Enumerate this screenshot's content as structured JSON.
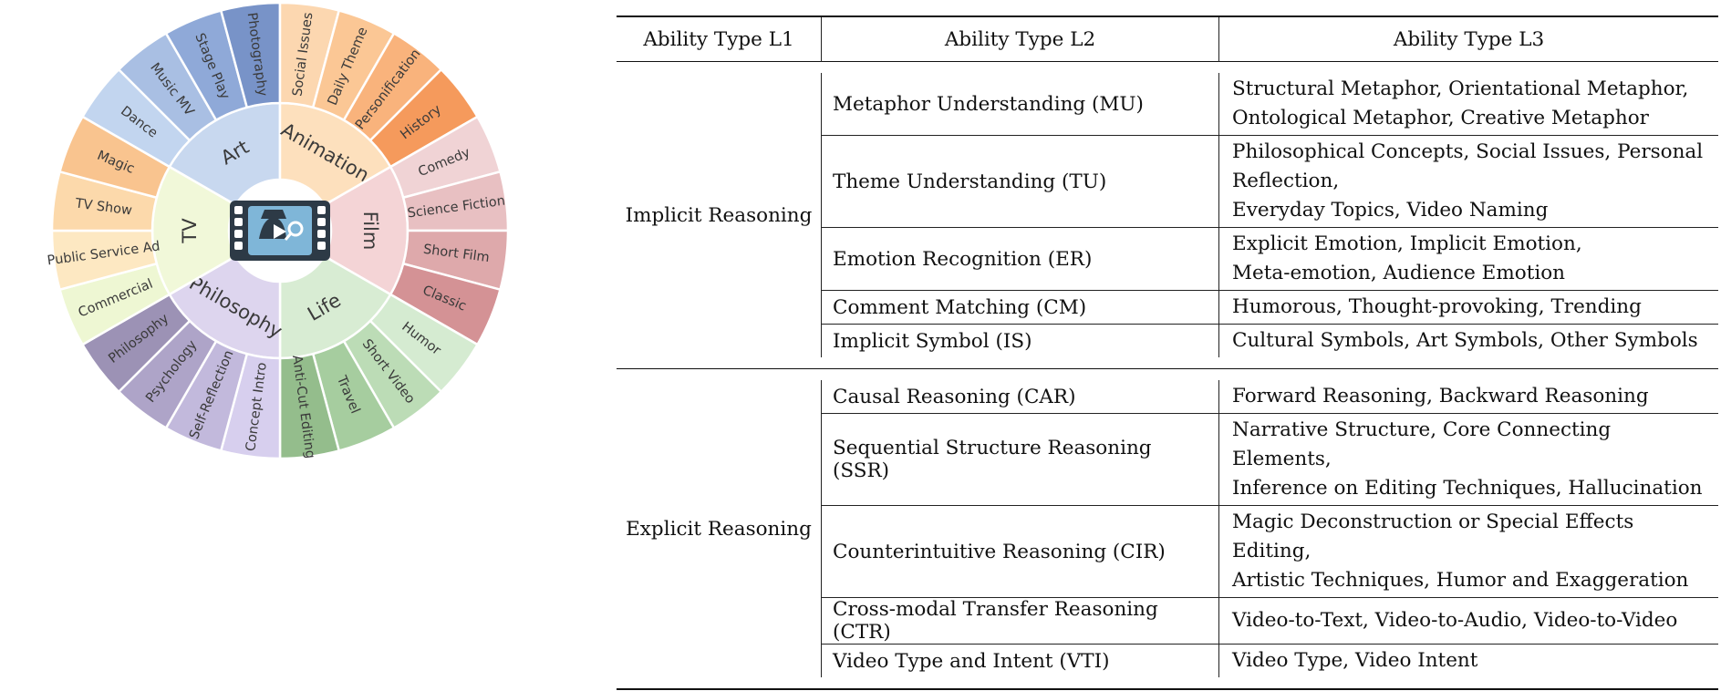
{
  "wheel": {
    "center_icon": "film-detective-icon",
    "categories": [
      {
        "label": "Art",
        "color": "#c8d8ef",
        "outer_color": "#9fb6dc",
        "subs": [
          {
            "label": "Dance",
            "color": "#c2d5ef"
          },
          {
            "label": "Music MV",
            "color": "#a9bfe3"
          },
          {
            "label": "Stage Play",
            "color": "#8fa9d8"
          },
          {
            "label": "Photography",
            "color": "#7893c8"
          }
        ]
      },
      {
        "label": "Animation",
        "color": "#fde0bd",
        "outer_color": "#f9b57e",
        "subs": [
          {
            "label": "Social Issues",
            "color": "#fcd7b0"
          },
          {
            "label": "Daily Theme",
            "color": "#fbc795"
          },
          {
            "label": "Personification",
            "color": "#f9b37c"
          },
          {
            "label": "History",
            "color": "#f59a5c"
          }
        ]
      },
      {
        "label": "Film",
        "color": "#f4d4d6",
        "outer_color": "#e6b2b4",
        "subs": [
          {
            "label": "Comedy",
            "color": "#f0d3d5"
          },
          {
            "label": "Science Fiction",
            "color": "#e8c0c2"
          },
          {
            "label": "Short Film",
            "color": "#dea9ab"
          },
          {
            "label": "Classic",
            "color": "#d49295"
          }
        ]
      },
      {
        "label": "Life",
        "color": "#d8ecd3",
        "outer_color": "#a9cfa2",
        "subs": [
          {
            "label": "Humor",
            "color": "#d5ebd1"
          },
          {
            "label": "Short Video",
            "color": "#bcdcb6"
          },
          {
            "label": "Travel",
            "color": "#a6cd9f"
          },
          {
            "label": "Anti-Cut Editing",
            "color": "#94bd8c"
          }
        ]
      },
      {
        "label": "Philosophy",
        "color": "#ddd5ee",
        "outer_color": "#aea3c9",
        "subs": [
          {
            "label": "Concept Intro",
            "color": "#d7cfee"
          },
          {
            "label": "Self-Reflection",
            "color": "#c2b9dc"
          },
          {
            "label": "Psychology",
            "color": "#aea4c8"
          },
          {
            "label": "Philosophy",
            "color": "#9c92b5"
          }
        ]
      },
      {
        "label": "TV",
        "color": "#f1f8d9",
        "outer_color": "#fbd9a8",
        "subs": [
          {
            "label": "Commercial",
            "color": "#eef7d3"
          },
          {
            "label": "Public Service Ad",
            "color": "#fde8c2"
          },
          {
            "label": "TV Show",
            "color": "#fcd9ab"
          },
          {
            "label": "Magic",
            "color": "#f9c48f"
          }
        ]
      }
    ]
  },
  "table": {
    "headers": {
      "l1": "Ability Type L1",
      "l2": "Ability Type L2",
      "l3": "Ability Type L3"
    },
    "implicit": {
      "l1": "Implicit Reasoning",
      "rows": [
        {
          "l2": "Metaphor Understanding (MU)",
          "l3a": "Structural Metaphor, Orientational Metaphor,",
          "l3b": "Ontological Metaphor, Creative Metaphor"
        },
        {
          "l2": "Theme Understanding (TU)",
          "l3a": "Philosophical Concepts, Social Issues, Personal Reflection,",
          "l3b": "Everyday Topics, Video Naming"
        },
        {
          "l2": "Emotion Recognition (ER)",
          "l3a": "Explicit Emotion, Implicit Emotion,",
          "l3b": "Meta-emotion, Audience Emotion"
        },
        {
          "l2": "Comment Matching (CM)",
          "l3a": "Humorous, Thought-provoking, Trending"
        },
        {
          "l2": "Implicit Symbol (IS)",
          "l3a": "Cultural Symbols, Art Symbols, Other Symbols"
        }
      ]
    },
    "explicit": {
      "l1": "Explicit Reasoning",
      "rows": [
        {
          "l2": "Causal Reasoning (CAR)",
          "l3a": "Forward Reasoning, Backward Reasoning"
        },
        {
          "l2": "Sequential Structure Reasoning (SSR)",
          "l3a": "Narrative Structure, Core Connecting Elements,",
          "l3b": "Inference on Editing Techniques, Hallucination"
        },
        {
          "l2": "Counterintuitive Reasoning (CIR)",
          "l3a": "Magic Deconstruction or Special Effects Editing,",
          "l3b": "Artistic Techniques, Humor and Exaggeration"
        },
        {
          "l2": "Cross-modal Transfer Reasoning (CTR)",
          "l3a": "Video-to-Text, Video-to-Audio, Video-to-Video"
        },
        {
          "l2": "Video Type and Intent (VTI)",
          "l3a": "Video Type, Video Intent"
        }
      ]
    }
  }
}
